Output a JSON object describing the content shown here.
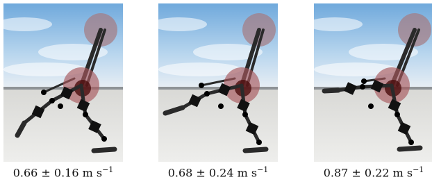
{
  "figure": {
    "panels": [
      {
        "caption": {
          "text": "0.66 ± 0.16 m s",
          "exponent": "−1"
        }
      },
      {
        "caption": {
          "text": "0.68 ± 0.24 m s",
          "exponent": "−1"
        }
      },
      {
        "caption": {
          "text": "0.87 ± 0.22 m s",
          "exponent": "−1"
        }
      }
    ]
  }
}
